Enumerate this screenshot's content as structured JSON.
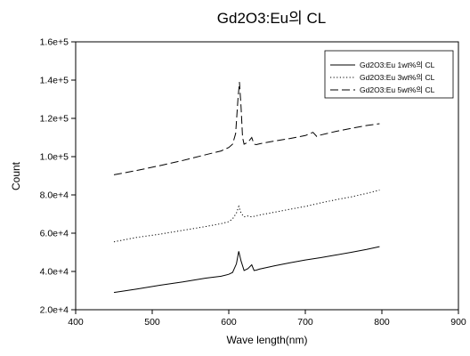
{
  "chart_data": {
    "type": "line",
    "title": "Gd2O3:Eu의   CL",
    "xlabel": "Wave length(nm)",
    "ylabel": "Count",
    "xlim": [
      400,
      900
    ],
    "ylim": [
      20000,
      160000
    ],
    "x_ticks": [
      400,
      500,
      600,
      700,
      800,
      900
    ],
    "x_tick_labels": [
      "400",
      "500",
      "600",
      "700",
      "800",
      "900"
    ],
    "y_ticks": [
      20000,
      40000,
      60000,
      80000,
      100000,
      120000,
      140000,
      160000
    ],
    "y_tick_labels": [
      "2.0e+4",
      "4.0e+4",
      "6.0e+4",
      "8.0e+4",
      "1.0e+5",
      "1.2e+5",
      "1.4e+5",
      "1.6e+5"
    ],
    "grid": false,
    "legend_position": "top-right",
    "series": [
      {
        "name": "Gd2O3:Eu 1wt%의   CL",
        "style": "solid",
        "x": [
          450,
          480,
          510,
          540,
          570,
          590,
          600,
          605,
          610,
          613,
          616,
          620,
          625,
          630,
          633,
          636,
          640,
          660,
          680,
          700,
          720,
          740,
          760,
          780,
          797
        ],
        "y": [
          29000,
          30800,
          32800,
          34500,
          36500,
          37500,
          38500,
          39500,
          44000,
          50500,
          45500,
          40500,
          41500,
          43500,
          40500,
          40700,
          41200,
          43000,
          44500,
          46000,
          47200,
          48600,
          50000,
          51500,
          53000
        ]
      },
      {
        "name": "Gd2O3:Eu 3wt%의   CL",
        "style": "dotted",
        "x": [
          450,
          480,
          510,
          540,
          570,
          590,
          600,
          605,
          610,
          613,
          616,
          620,
          625,
          630,
          640,
          660,
          680,
          700,
          720,
          740,
          760,
          780,
          797
        ],
        "y": [
          55500,
          57800,
          59500,
          61500,
          63500,
          65000,
          66000,
          67500,
          70500,
          74000,
          70500,
          68500,
          69000,
          68500,
          69500,
          71000,
          72500,
          74000,
          75800,
          77500,
          79000,
          80800,
          82500
        ]
      },
      {
        "name": "Gd2O3:Eu 5wt%의   CL",
        "style": "dashed",
        "x": [
          450,
          480,
          510,
          540,
          570,
          590,
          600,
          605,
          609,
          612,
          614,
          616,
          618,
          620,
          625,
          630,
          633,
          636,
          640,
          660,
          680,
          700,
          710,
          715,
          720,
          740,
          760,
          780,
          797
        ],
        "y": [
          90500,
          92800,
          95300,
          98000,
          101000,
          103000,
          104800,
          106500,
          112000,
          130000,
          139000,
          126000,
          110000,
          106500,
          107500,
          110000,
          106500,
          106300,
          106700,
          108200,
          109500,
          111000,
          112700,
          110500,
          111300,
          113200,
          114800,
          116300,
          117200
        ]
      }
    ]
  }
}
